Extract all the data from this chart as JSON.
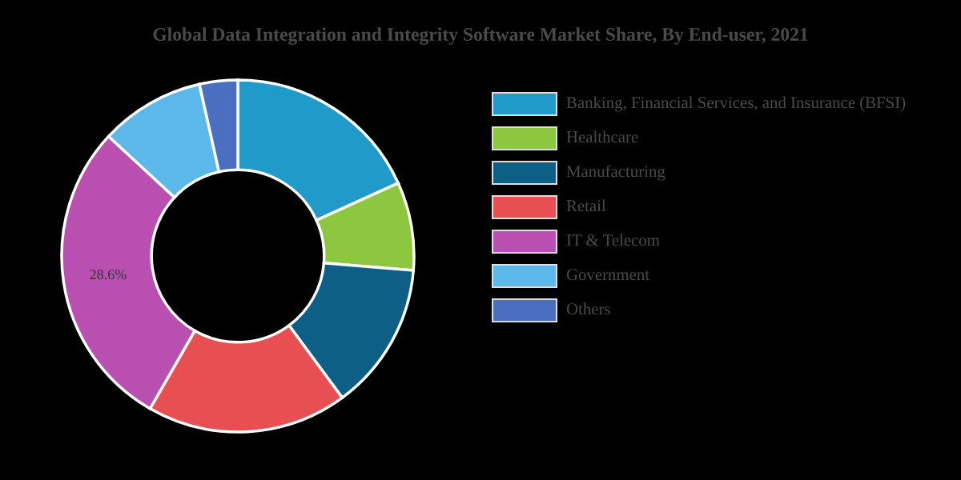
{
  "chart_data": {
    "type": "donut",
    "title": "Global Data Integration and Integrity Software Market Share, By End-user, 2021",
    "categories": [
      "Banking, Financial Services, and Insurance (BFSI)",
      "Healthcare",
      "Manufacturing",
      "Retail",
      "IT & Telecom",
      "Government",
      "Others"
    ],
    "values": [
      18.2,
      8.1,
      13.6,
      18.4,
      28.6,
      9.6,
      3.5
    ],
    "colors": [
      "#1f9ac9",
      "#8dc63f",
      "#0e5f85",
      "#e84f52",
      "#b94fb0",
      "#5bb8e8",
      "#4a6fc0"
    ],
    "value_labels": [
      null,
      null,
      null,
      null,
      "28.6%",
      null,
      null
    ],
    "legend": "right"
  }
}
